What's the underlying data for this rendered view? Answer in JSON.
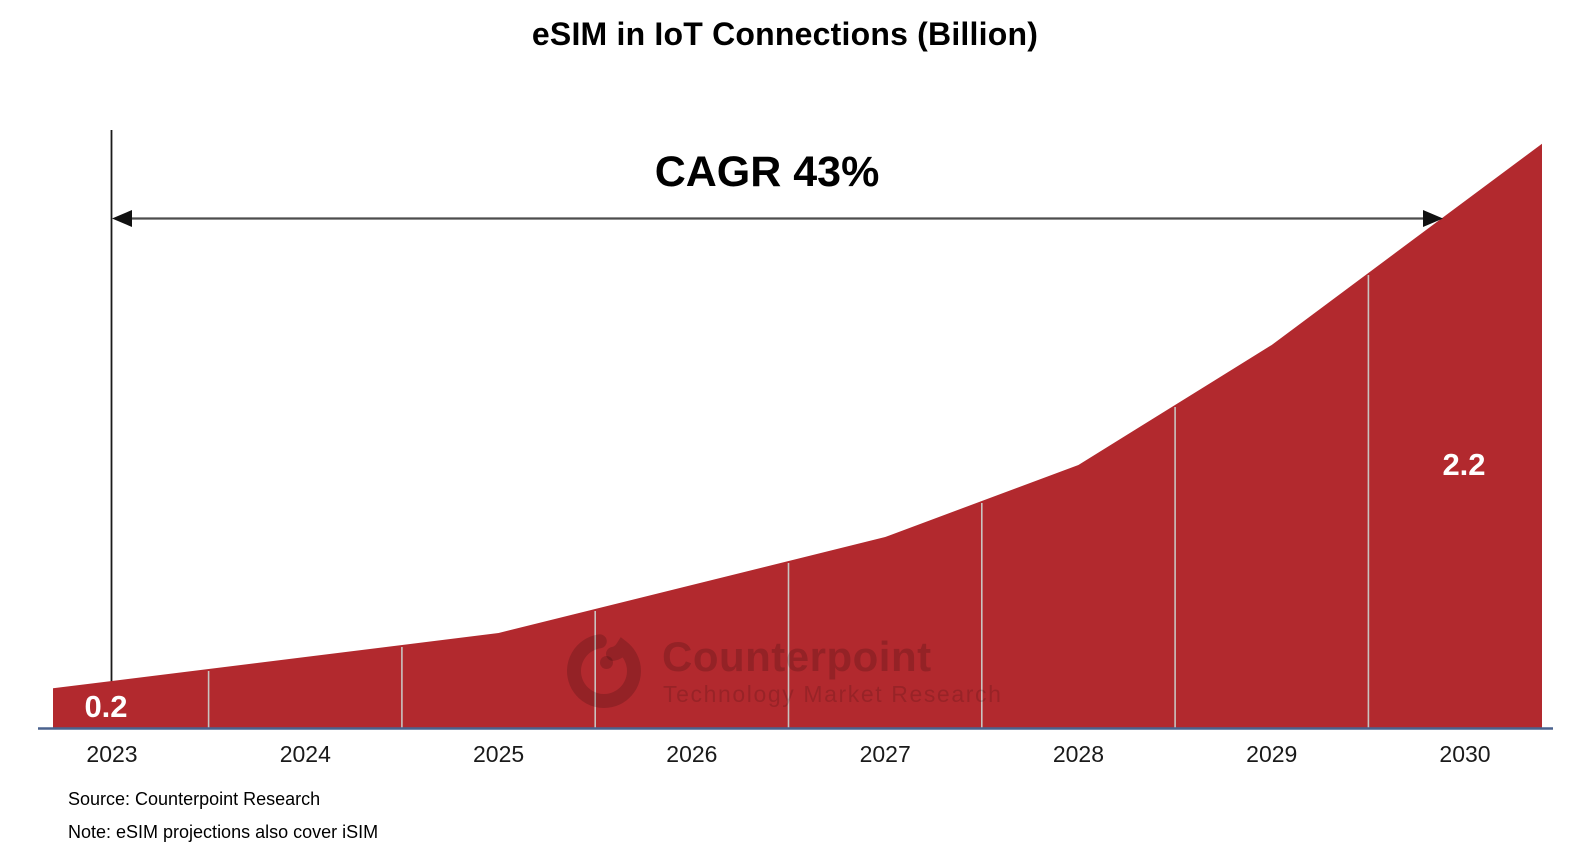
{
  "header": {
    "title": "eSIM in IoT Connections (Billion)"
  },
  "annotation": {
    "cagr": "CAGR 43%"
  },
  "footnotes": {
    "source": "Source: Counterpoint Research",
    "note": "Note: eSIM projections also cover iSIM"
  },
  "watermark": {
    "brand": "Counterpoint",
    "tagline": "Technology Market Research",
    "logo_icon": "counterpoint-ring-logo"
  },
  "colors": {
    "area": "#B2292E",
    "baseline_axis": "#4A628E",
    "y_axis_line": "#1a1a1a",
    "arrow": "#4d4d4d",
    "separator": "#C9C3C0",
    "value_label_text": "#FFFFFF",
    "title_text": "#000000"
  },
  "chart_data": {
    "type": "area",
    "title": "eSIM in IoT Connections (Billion)",
    "categories": [
      "2023",
      "2024",
      "2025",
      "2026",
      "2027",
      "2028",
      "2029",
      "2030"
    ],
    "series": [
      {
        "name": "eSIM in IoT Connections (Billion)",
        "values": [
          0.2,
          0.3,
          0.4,
          0.6,
          0.8,
          1.1,
          1.6,
          2.2
        ]
      }
    ],
    "data_labels": [
      "0.2",
      "2.2"
    ],
    "data_label_positions": [
      "2023",
      "2030"
    ],
    "annotations": [
      "CAGR 43%"
    ],
    "xlabel": "",
    "ylabel": "",
    "ylim": [
      0,
      2.6
    ],
    "y_axis_tick_labels_visible": false,
    "legend": "none",
    "grid": "vertical white category separators inside the filled area",
    "notes": "single red area series rising exponentially from 0.2 in 2023 to 2.2 in 2030; double-headed CAGR arrow spans the plot"
  }
}
